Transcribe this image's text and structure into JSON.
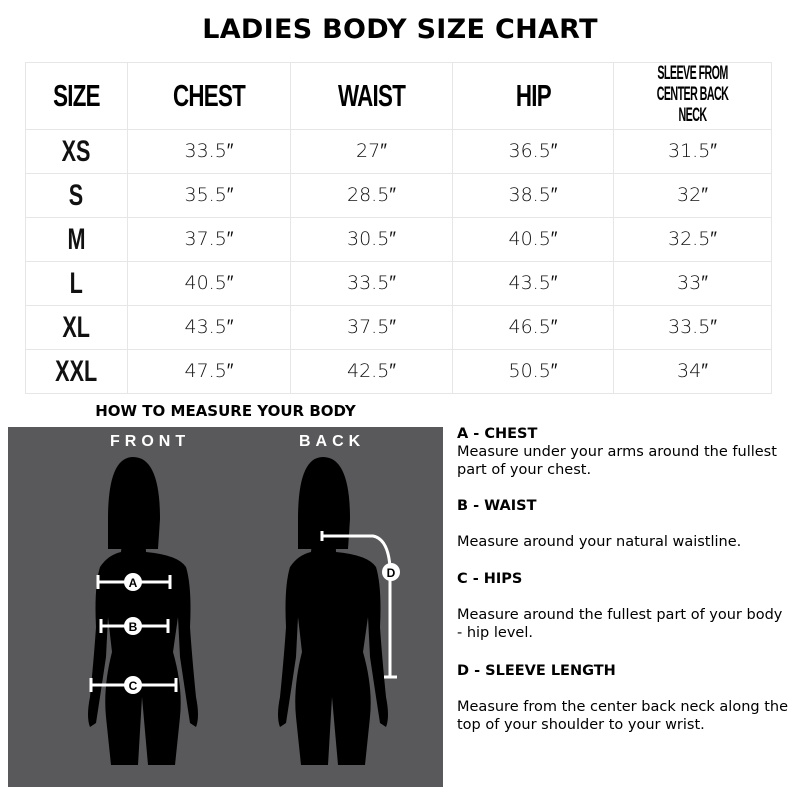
{
  "title": "LADIES BODY SIZE CHART",
  "table": {
    "headers": [
      "SIZE",
      "CHEST",
      "WAIST",
      "HIP"
    ],
    "sleeve_header": [
      "SLEEVE FROM",
      "CENTER BACK NECK"
    ],
    "rows": [
      [
        "XS",
        "33.5″",
        "27″",
        "36.5″",
        "31.5″"
      ],
      [
        "S",
        "35.5″",
        "28.5″",
        "38.5″",
        "32″"
      ],
      [
        "M",
        "37.5″",
        "30.5″",
        "40.5″",
        "32.5″"
      ],
      [
        "L",
        "40.5″",
        "33.5″",
        "43.5″",
        "33″"
      ],
      [
        "XL",
        "43.5″",
        "37.5″",
        "46.5″",
        "33.5″"
      ],
      [
        "XXL",
        "47.5″",
        "42.5″",
        "50.5″",
        "34″"
      ]
    ]
  },
  "howto": {
    "title": "HOW TO MEASURE YOUR BODY",
    "front_label": "FRONT",
    "back_label": "BACK",
    "markers": [
      "A",
      "B",
      "C",
      "D"
    ],
    "panel_color": "#59595b"
  },
  "instructions": [
    {
      "heading": "A - CHEST",
      "text": "Measure under your arms around the fullest part of your chest."
    },
    {
      "heading": "B - WAIST",
      "text": "Measure around your natural waistline."
    },
    {
      "heading": "C - HIPS",
      "text": "Measure around the fullest part of your body - hip level."
    },
    {
      "heading": "D - SLEEVE LENGTH",
      "text": "Measure from the center back neck along the top of your shoulder to your wrist."
    }
  ]
}
